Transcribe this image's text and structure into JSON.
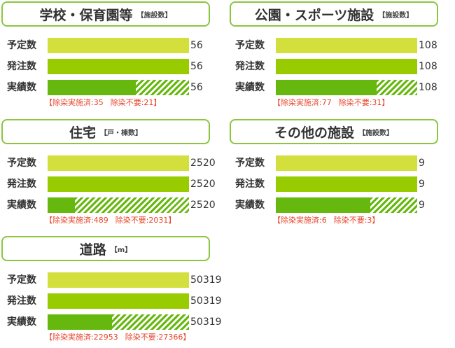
{
  "labels": {
    "plan": "予定数",
    "order": "発注数",
    "done": "実績数",
    "decon_prefix": "【除染実施済:",
    "exempt_prefix": "除染不要:",
    "suffix": "】"
  },
  "colors": {
    "header_border": "#8cc63f",
    "plan_bar": "#d3df3d",
    "order_bar": "#99cc00",
    "done_bar": "#66b80f",
    "breakdown_text": "#e8452c"
  },
  "chart_data": [
    {
      "type": "bar",
      "title": "学校・保育園等",
      "unit": "【施設数】",
      "categories": [
        "予定数",
        "発注数",
        "実績数"
      ],
      "values": [
        56,
        56,
        56
      ],
      "breakdown": {
        "decontaminated": 35,
        "not_required": 21
      }
    },
    {
      "type": "bar",
      "title": "公園・スポーツ施設",
      "unit": "【施設数】",
      "categories": [
        "予定数",
        "発注数",
        "実績数"
      ],
      "values": [
        108,
        108,
        108
      ],
      "breakdown": {
        "decontaminated": 77,
        "not_required": 31
      }
    },
    {
      "type": "bar",
      "title": "住宅",
      "unit": "【戸・棟数】",
      "categories": [
        "予定数",
        "発注数",
        "実績数"
      ],
      "values": [
        2520,
        2520,
        2520
      ],
      "breakdown": {
        "decontaminated": 489,
        "not_required": 2031
      }
    },
    {
      "type": "bar",
      "title": "その他の施設",
      "unit": "【施設数】",
      "categories": [
        "予定数",
        "発注数",
        "実績数"
      ],
      "values": [
        9,
        9,
        9
      ],
      "breakdown": {
        "decontaminated": 6,
        "not_required": 3
      }
    },
    {
      "type": "bar",
      "title": "道路",
      "unit": "【m】",
      "categories": [
        "予定数",
        "発注数",
        "実績数"
      ],
      "values": [
        50319,
        50319,
        50319
      ],
      "breakdown": {
        "decontaminated": 22953,
        "not_required": 27366
      }
    }
  ]
}
